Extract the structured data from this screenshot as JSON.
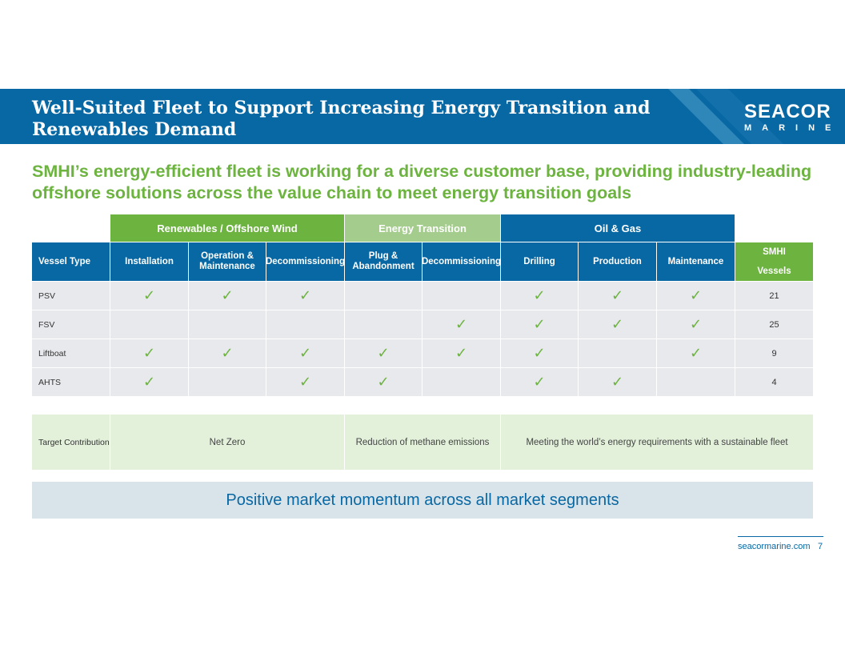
{
  "header": {
    "title": "Well-Suited Fleet to Support Increasing Energy Transition and Renewables Demand",
    "logo_line1": "SEACOR",
    "logo_line2": "MARINE"
  },
  "subtitle": "SMHI’s energy-efficient fleet is working for a diverse customer base, providing industry-leading offshore solutions across the value chain to meet energy transition goals",
  "table": {
    "groups": [
      "Renewables / Offshore Wind",
      "Energy Transition",
      "Oil & Gas"
    ],
    "columns": [
      "Vessel Type",
      "Installation",
      "Operation & Maintenance",
      "Decommissioning",
      "Plug & Abandonment",
      "Decommissioning",
      "Drilling",
      "Production",
      "Maintenance"
    ],
    "smhi_header": [
      "SMHI",
      "Vessels"
    ],
    "check_glyph": "✓",
    "rows": [
      {
        "type": "PSV",
        "checks": [
          true,
          true,
          true,
          false,
          false,
          true,
          true,
          true
        ],
        "vessels": "21"
      },
      {
        "type": "FSV",
        "checks": [
          false,
          false,
          false,
          false,
          true,
          true,
          true,
          true
        ],
        "vessels": "25"
      },
      {
        "type": "Liftboat",
        "checks": [
          true,
          true,
          true,
          true,
          true,
          true,
          false,
          true
        ],
        "vessels": "9"
      },
      {
        "type": "AHTS",
        "checks": [
          true,
          false,
          true,
          true,
          false,
          true,
          true,
          false
        ],
        "vessels": "4"
      }
    ]
  },
  "target": {
    "label": "Target Contribution",
    "values": [
      "Net Zero",
      "Reduction of methane emissions",
      "Meeting the world’s energy requirements with a sustainable fleet"
    ]
  },
  "banner": "Positive market momentum across all market segments",
  "footer": {
    "url": "seacormarine.com",
    "page": "7"
  },
  "colors": {
    "blue": "#0868a3",
    "green": "#6cb33f",
    "light_green": "#a4cc8c",
    "row_gray": "#e8e9ed",
    "target_bg": "#e3f1db"
  }
}
